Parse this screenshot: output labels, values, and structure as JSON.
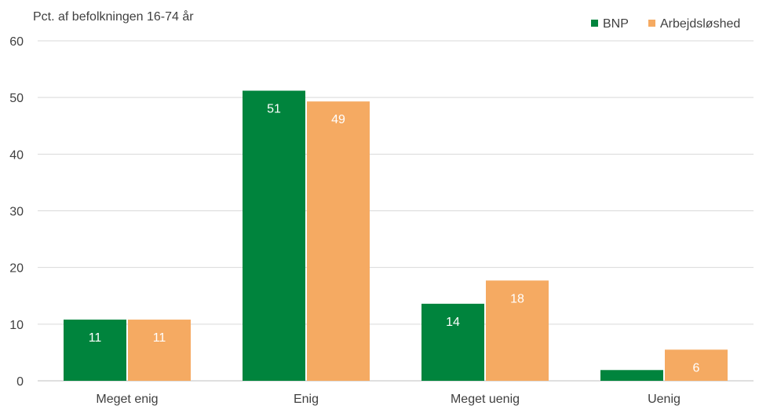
{
  "chart_data": {
    "type": "bar",
    "ylabel": "Pct. af befolkningen 16-74 år",
    "categories": [
      "Meget enig",
      "Enig",
      "Meget uenig",
      "Uenig"
    ],
    "series": [
      {
        "name": "BNP",
        "values": [
          10.8,
          51.2,
          13.6,
          1.9
        ],
        "labels": [
          "11",
          "51",
          "14",
          ""
        ],
        "color": "#00843d"
      },
      {
        "name": "Arbejdsløshed",
        "values": [
          10.8,
          49.3,
          17.7,
          5.5
        ],
        "labels": [
          "11",
          "49",
          "18",
          "6"
        ],
        "color": "#f5aa62"
      }
    ],
    "ylim": [
      0,
      60
    ],
    "yticks": [
      0,
      10,
      20,
      30,
      40,
      50,
      60
    ],
    "grid": true,
    "legend": "top-right",
    "colors": {
      "gridline": "#d9d9d9",
      "axis": "#bfbfbf",
      "text": "#404040",
      "data_label": "#ffffff"
    }
  }
}
